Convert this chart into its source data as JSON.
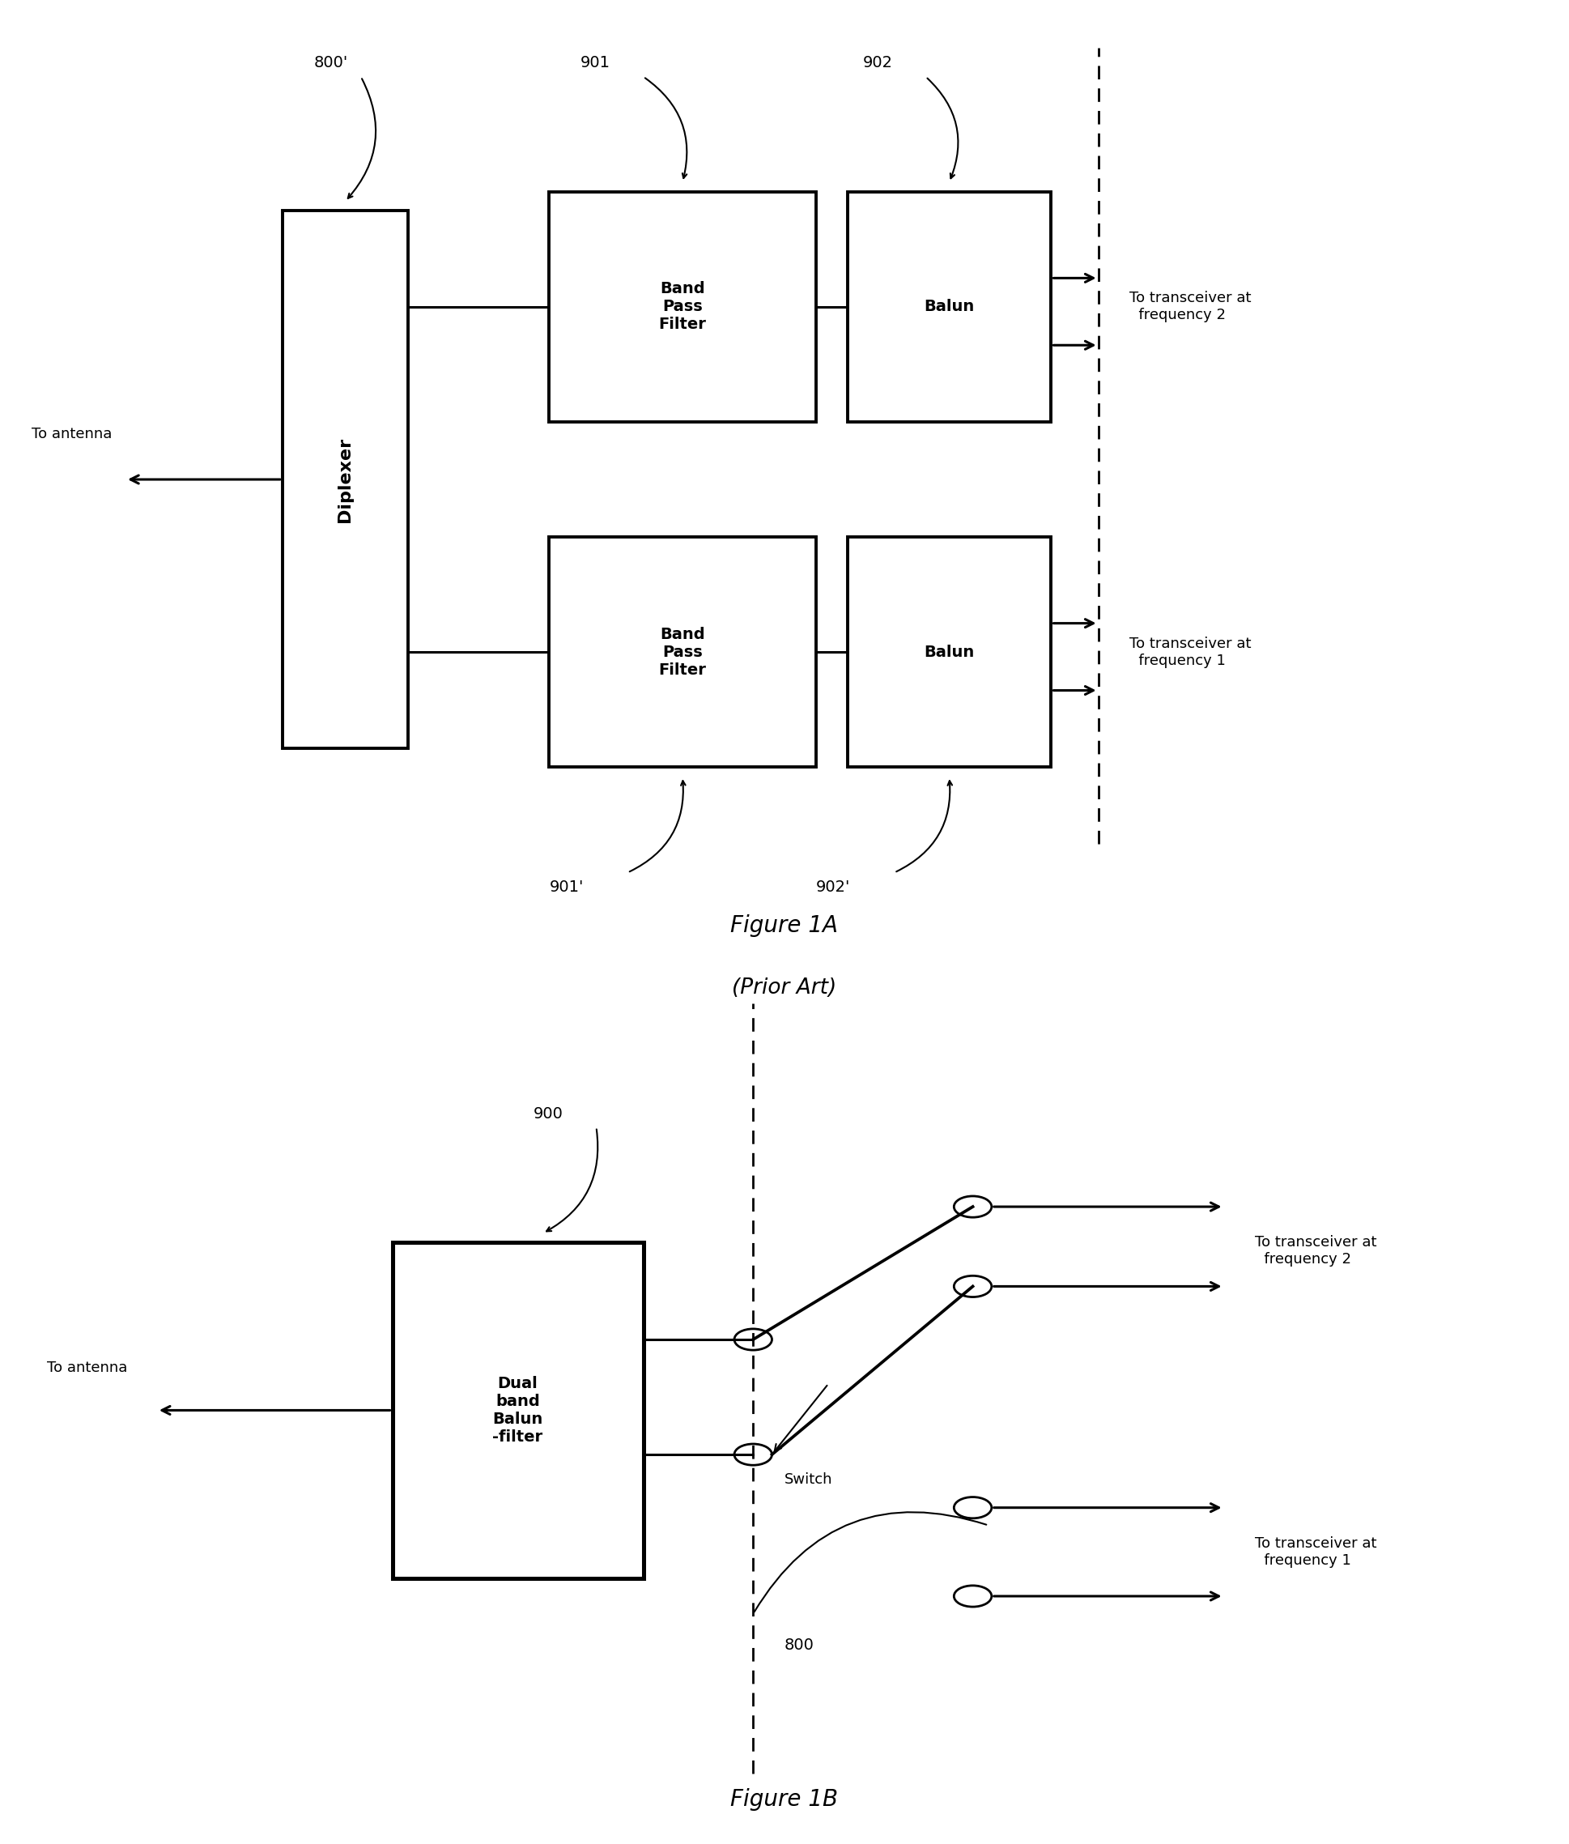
{
  "fig_width": 19.38,
  "fig_height": 22.77,
  "bg_color": "#ffffff",
  "line_color": "#000000",
  "fig1A_title": "Figure 1A",
  "fig1A_subtitle": "(Prior Art)",
  "fig1B_title": "Figure 1B",
  "label_800_prime": "800'",
  "label_901": "901",
  "label_902": "902",
  "label_901_prime": "901'",
  "label_902_prime": "902'",
  "label_900": "900",
  "label_800": "800",
  "label_diplexer": "Diplexer",
  "label_bpf": "Band\nPass\nFilter",
  "label_balun": "Balun",
  "label_to_antenna": "To antenna",
  "label_to_transceiver_f2": "To transceiver at\n  frequency 2",
  "label_to_transceiver_f1": "To transceiver at\n  frequency 1",
  "label_dual_band": "Dual\nband\nBalun\n-filter",
  "label_switch": "Switch"
}
